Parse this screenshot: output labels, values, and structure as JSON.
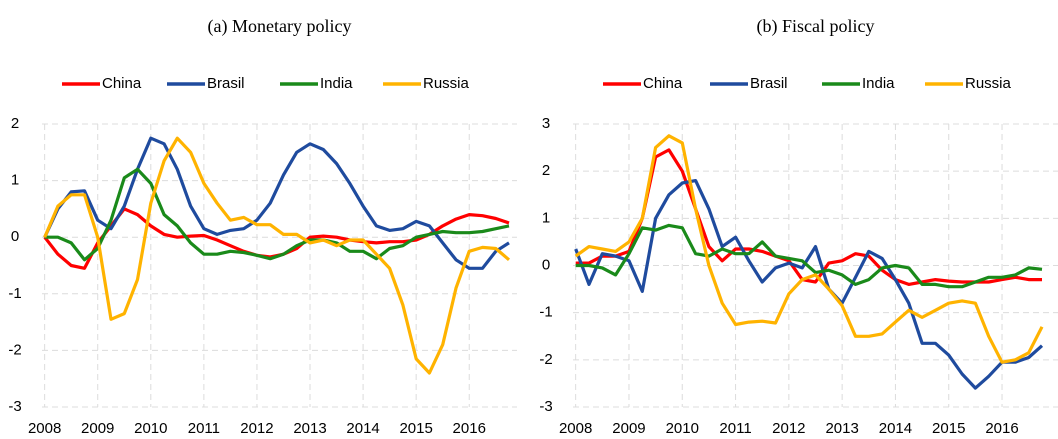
{
  "chart_data": [
    {
      "type": "line",
      "title": "(a) Monetary policy",
      "x": [
        2008,
        2008.25,
        2008.5,
        2008.75,
        2009,
        2009.25,
        2009.5,
        2009.75,
        2010,
        2010.25,
        2010.5,
        2010.75,
        2011,
        2011.25,
        2011.5,
        2011.75,
        2012,
        2012.25,
        2012.5,
        2012.75,
        2013,
        2013.25,
        2013.5,
        2013.75,
        2014,
        2014.25,
        2014.5,
        2014.75,
        2015,
        2015.25,
        2015.5,
        2015.75,
        2016,
        2016.25,
        2016.5,
        2016.75
      ],
      "xlim": [
        2007.95,
        2016.9
      ],
      "xticks": [
        2008,
        2009,
        2010,
        2011,
        2012,
        2013,
        2014,
        2015,
        2016
      ],
      "ylim": [
        -3,
        2
      ],
      "yticks": [
        -3,
        -2,
        -1,
        0,
        1,
        2
      ],
      "grid": true,
      "legend": "top",
      "series": [
        {
          "name": "China",
          "color": "#ff0000",
          "values": [
            0,
            -0.3,
            -0.5,
            -0.55,
            -0.1,
            0.2,
            0.5,
            0.4,
            0.2,
            0.05,
            0,
            0.02,
            0.03,
            -0.05,
            -0.15,
            -0.25,
            -0.32,
            -0.35,
            -0.3,
            -0.2,
            0,
            0.02,
            0,
            -0.05,
            -0.08,
            -0.1,
            -0.08,
            -0.08,
            -0.05,
            0.05,
            0.2,
            0.32,
            0.4,
            0.38,
            0.33,
            0.25
          ]
        },
        {
          "name": "Brasil",
          "color": "#1f4b9e",
          "values": [
            0,
            0.5,
            0.8,
            0.82,
            0.3,
            0.15,
            0.55,
            1.2,
            1.75,
            1.65,
            1.2,
            0.55,
            0.15,
            0.05,
            0.12,
            0.15,
            0.3,
            0.6,
            1.1,
            1.5,
            1.65,
            1.55,
            1.3,
            0.95,
            0.55,
            0.2,
            0.12,
            0.15,
            0.28,
            0.2,
            -0.1,
            -0.4,
            -0.55,
            -0.55,
            -0.25,
            -0.1
          ]
        },
        {
          "name": "India",
          "color": "#1a8a1a",
          "values": [
            0,
            0,
            -0.1,
            -0.4,
            -0.2,
            0.3,
            1.05,
            1.2,
            0.95,
            0.4,
            0.2,
            -0.1,
            -0.3,
            -0.3,
            -0.25,
            -0.27,
            -0.32,
            -0.38,
            -0.3,
            -0.15,
            -0.05,
            -0.05,
            -0.1,
            -0.25,
            -0.25,
            -0.38,
            -0.2,
            -0.15,
            0,
            0.05,
            0.1,
            0.08,
            0.08,
            0.1,
            0.15,
            0.2
          ]
        },
        {
          "name": "Russia",
          "color": "#ffb300",
          "values": [
            0,
            0.55,
            0.75,
            0.75,
            0,
            -1.45,
            -1.35,
            -0.75,
            0.6,
            1.35,
            1.75,
            1.5,
            0.95,
            0.6,
            0.3,
            0.35,
            0.22,
            0.22,
            0.05,
            0.05,
            -0.1,
            -0.05,
            -0.15,
            -0.05,
            -0.05,
            -0.3,
            -0.55,
            -1.2,
            -2.15,
            -2.4,
            -1.9,
            -0.9,
            -0.25,
            -0.18,
            -0.2,
            -0.4
          ]
        }
      ]
    },
    {
      "type": "line",
      "title": "(b) Fiscal policy",
      "x": [
        2008,
        2008.25,
        2008.5,
        2008.75,
        2009,
        2009.25,
        2009.5,
        2009.75,
        2010,
        2010.25,
        2010.5,
        2010.75,
        2011,
        2011.25,
        2011.5,
        2011.75,
        2012,
        2012.25,
        2012.5,
        2012.75,
        2013,
        2013.25,
        2013.5,
        2013.75,
        2014,
        2014.25,
        2014.5,
        2014.75,
        2015,
        2015.25,
        2015.5,
        2015.75,
        2016,
        2016.25,
        2016.5,
        2016.75
      ],
      "xlim": [
        2007.95,
        2017.05
      ],
      "xticks": [
        2008,
        2009,
        2010,
        2011,
        2012,
        2013,
        2014,
        2015,
        2016
      ],
      "ylim": [
        -3,
        3
      ],
      "yticks": [
        -3,
        -2,
        -1,
        0,
        1,
        2,
        3
      ],
      "grid": true,
      "legend": "top",
      "series": [
        {
          "name": "China",
          "color": "#ff0000",
          "values": [
            0.05,
            0.05,
            0.2,
            0.2,
            0.3,
            1.0,
            2.3,
            2.45,
            2.0,
            1.2,
            0.4,
            0.1,
            0.35,
            0.35,
            0.3,
            0.2,
            0.1,
            -0.3,
            -0.35,
            0.05,
            0.1,
            0.25,
            0.2,
            -0.1,
            -0.3,
            -0.4,
            -0.35,
            -0.3,
            -0.33,
            -0.35,
            -0.35,
            -0.35,
            -0.3,
            -0.25,
            -0.3,
            -0.3
          ]
        },
        {
          "name": "Brasil",
          "color": "#1f4b9e",
          "values": [
            0.35,
            -0.4,
            0.25,
            0.2,
            0.1,
            -0.55,
            1.0,
            1.5,
            1.75,
            1.8,
            1.2,
            0.4,
            0.6,
            0.1,
            -0.35,
            -0.05,
            0.05,
            -0.05,
            0.4,
            -0.5,
            -0.8,
            -0.25,
            0.3,
            0.15,
            -0.3,
            -0.8,
            -1.65,
            -1.65,
            -1.9,
            -2.3,
            -2.6,
            -2.35,
            -2.05,
            -2.05,
            -1.95,
            -1.7
          ]
        },
        {
          "name": "India",
          "color": "#1a8a1a",
          "values": [
            0,
            0,
            -0.05,
            -0.2,
            0.25,
            0.8,
            0.75,
            0.85,
            0.8,
            0.25,
            0.2,
            0.35,
            0.25,
            0.25,
            0.5,
            0.2,
            0.15,
            0.1,
            -0.15,
            -0.1,
            -0.2,
            -0.4,
            -0.3,
            -0.05,
            0,
            -0.05,
            -0.4,
            -0.4,
            -0.45,
            -0.45,
            -0.35,
            -0.25,
            -0.25,
            -0.2,
            -0.05,
            -0.08
          ]
        },
        {
          "name": "Russia",
          "color": "#ffb300",
          "values": [
            0.2,
            0.4,
            0.35,
            0.3,
            0.5,
            1.0,
            2.5,
            2.75,
            2.6,
            1.2,
            0,
            -0.8,
            -1.25,
            -1.2,
            -1.18,
            -1.22,
            -0.6,
            -0.3,
            -0.2,
            -0.5,
            -0.85,
            -1.5,
            -1.5,
            -1.45,
            -1.2,
            -0.95,
            -1.1,
            -0.95,
            -0.8,
            -0.75,
            -0.8,
            -1.5,
            -2.05,
            -2,
            -1.85,
            -1.3
          ]
        }
      ]
    }
  ]
}
